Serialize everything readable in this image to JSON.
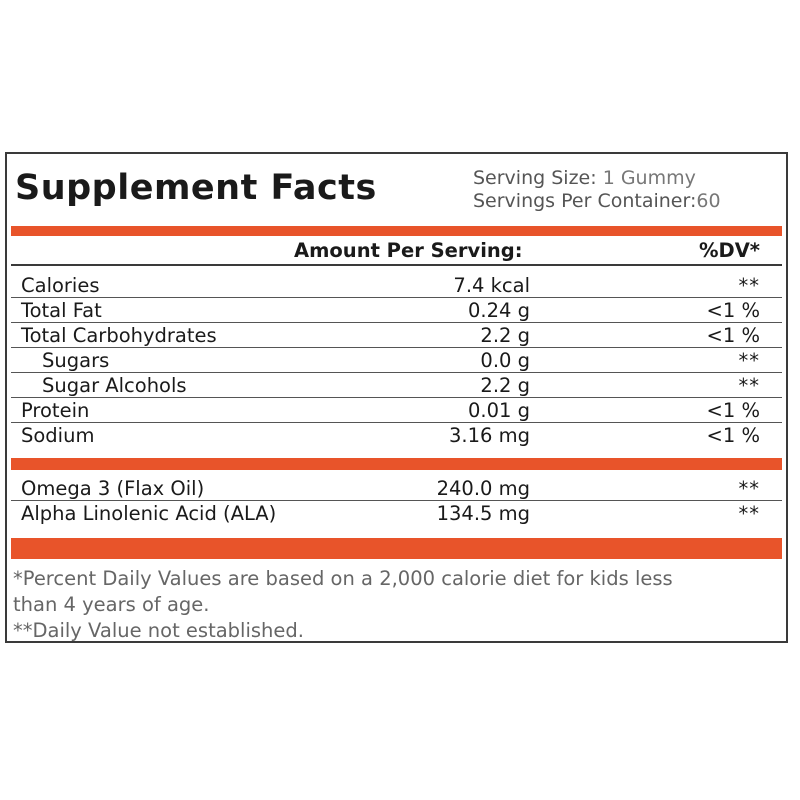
{
  "label": {
    "title": "Supplement Facts",
    "serving_size_label": "Serving Size:",
    "serving_size_value": "1 Gummy",
    "servings_per_container_label": "Servings Per Container:",
    "servings_per_container_value": "60",
    "amount_header": "Amount Per Serving:",
    "dv_header": "%DV*",
    "nutrients": [
      {
        "name": "Calories",
        "amount": "7.4 kcal",
        "dv": "**"
      },
      {
        "name": "Total Fat",
        "amount": "0.24 g",
        "dv": "<1 %"
      },
      {
        "name": "Total Carbohydrates",
        "amount": "2.2 g",
        "dv": "<1 %"
      },
      {
        "name": "Sugars",
        "amount": "0.0 g",
        "dv": "**"
      },
      {
        "name": "Sugar Alcohols",
        "amount": "2.2 g",
        "dv": "**"
      },
      {
        "name": "Protein",
        "amount": "0.01 g",
        "dv": "<1 %"
      },
      {
        "name": "Sodium",
        "amount": "3.16 mg",
        "dv": "<1 %"
      }
    ],
    "ingredients": [
      {
        "name": "Omega 3 (Flax Oil)",
        "amount": "240.0 mg",
        "dv": "**"
      },
      {
        "name": "Alpha Linolenic Acid (ALA)",
        "amount": "134.5 mg",
        "dv": "**"
      }
    ],
    "footnote_line1": "*Percent Daily Values are based on a 2,000 calorie diet for kids less",
    "footnote_line2": "than 4 years of age.",
    "footnote_line3": "**Daily Value not established.",
    "accent_color": "#e8542a"
  }
}
